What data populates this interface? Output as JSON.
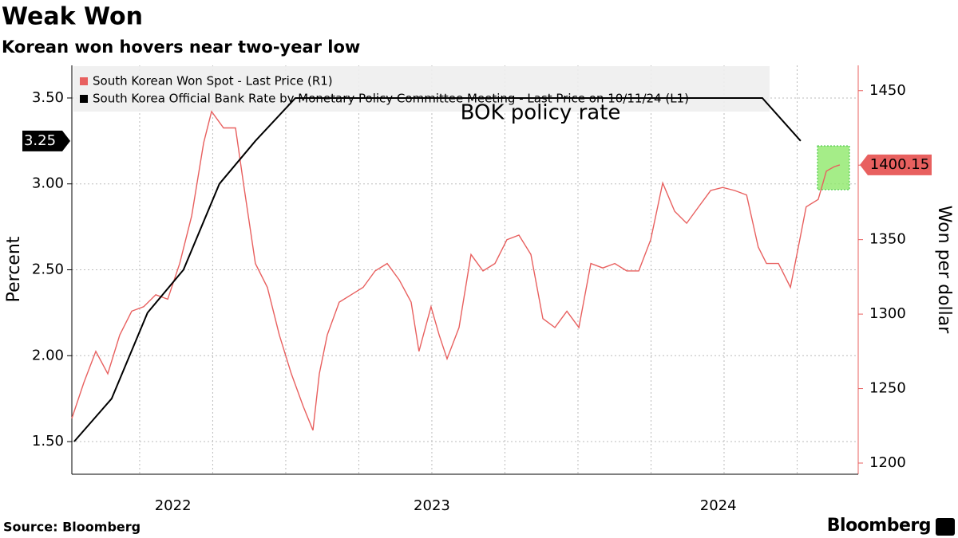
{
  "chart_data": {
    "type": "line",
    "title": "Weak Won",
    "subtitle": "Korean won hovers near two-year low",
    "ylabel": "Percent",
    "y2label": "Won per dollar",
    "annotation": "BOK policy rate",
    "source": "Source: Bloomberg",
    "brand": "Bloomberg",
    "xlim": [
      2022.268,
      2024.959
    ],
    "xticks": [
      {
        "value": 2022.614,
        "label": "2022"
      },
      {
        "value": 2023.5,
        "label": "2023"
      },
      {
        "value": 2024.48,
        "label": "2024"
      }
    ],
    "ylim": [
      1.31,
      3.69
    ],
    "yticks": [
      {
        "value": 1.5,
        "label": "1.50"
      },
      {
        "value": 2.0,
        "label": "2.00"
      },
      {
        "value": 2.5,
        "label": "2.50"
      },
      {
        "value": 3.0,
        "label": "3.00"
      },
      {
        "value": 3.5,
        "label": "3.50"
      }
    ],
    "y2lim": [
      1192.5,
      1467
    ],
    "y2ticks": [
      1200,
      1250,
      1300,
      1350,
      1400,
      1450
    ],
    "grid": true,
    "legend": "top-left",
    "series": [
      {
        "name": "South Korean Won Spot - Last Price (R1)",
        "color": "#e8605f",
        "axis": "y2",
        "last_value_label": "1400.15",
        "x": [
          2022.268,
          2022.309,
          2022.35,
          2022.391,
          2022.432,
          2022.473,
          2022.514,
          2022.555,
          2022.596,
          2022.637,
          2022.678,
          2022.719,
          2022.746,
          2022.787,
          2022.828,
          2022.855,
          2022.896,
          2022.937,
          2022.978,
          2023.019,
          2023.06,
          2023.093,
          2023.115,
          2023.142,
          2023.183,
          2023.224,
          2023.265,
          2023.306,
          2023.347,
          2023.388,
          2023.429,
          2023.456,
          2023.497,
          2023.525,
          2023.552,
          2023.593,
          2023.634,
          2023.675,
          2023.716,
          2023.757,
          2023.798,
          2023.839,
          2023.88,
          2023.921,
          2023.962,
          2024.003,
          2024.044,
          2024.085,
          2024.126,
          2024.167,
          2024.208,
          2024.249,
          2024.29,
          2024.331,
          2024.372,
          2024.413,
          2024.454,
          2024.495,
          2024.536,
          2024.577,
          2024.617,
          2024.645,
          2024.686,
          2024.727,
          2024.754,
          2024.781,
          2024.822,
          2024.85,
          2024.877,
          2024.896
        ],
        "values": [
          1230,
          1254,
          1275,
          1260,
          1286,
          1302,
          1305,
          1313,
          1310,
          1334,
          1366,
          1415,
          1436,
          1425,
          1425,
          1388,
          1334,
          1318,
          1286,
          1260,
          1238,
          1222,
          1260,
          1286,
          1308,
          1313,
          1318,
          1329,
          1334,
          1323,
          1308,
          1275,
          1305,
          1286,
          1270,
          1291,
          1340,
          1329,
          1334,
          1350,
          1353,
          1340,
          1297,
          1291,
          1302,
          1291,
          1334,
          1331,
          1334,
          1329,
          1329,
          1350,
          1388,
          1369,
          1361,
          1372,
          1383,
          1385,
          1383,
          1380,
          1345,
          1334,
          1334,
          1318,
          1345,
          1372,
          1377,
          1396,
          1399,
          1400.15
        ]
      },
      {
        "name": "South Korea Official Bank Rate by Monetary Policy Committee Meeting - Last Price on 10/11/24 (L1)",
        "color": "#000000",
        "last_value_label": "3.25",
        "x": [
          2022.276,
          2022.404,
          2022.527,
          2022.65,
          2022.773,
          2022.896,
          2023.033,
          2024.631,
          2024.762
        ],
        "values": [
          1.5,
          1.75,
          2.25,
          2.5,
          3.0,
          3.25,
          3.5,
          3.5,
          3.25
        ]
      }
    ]
  }
}
